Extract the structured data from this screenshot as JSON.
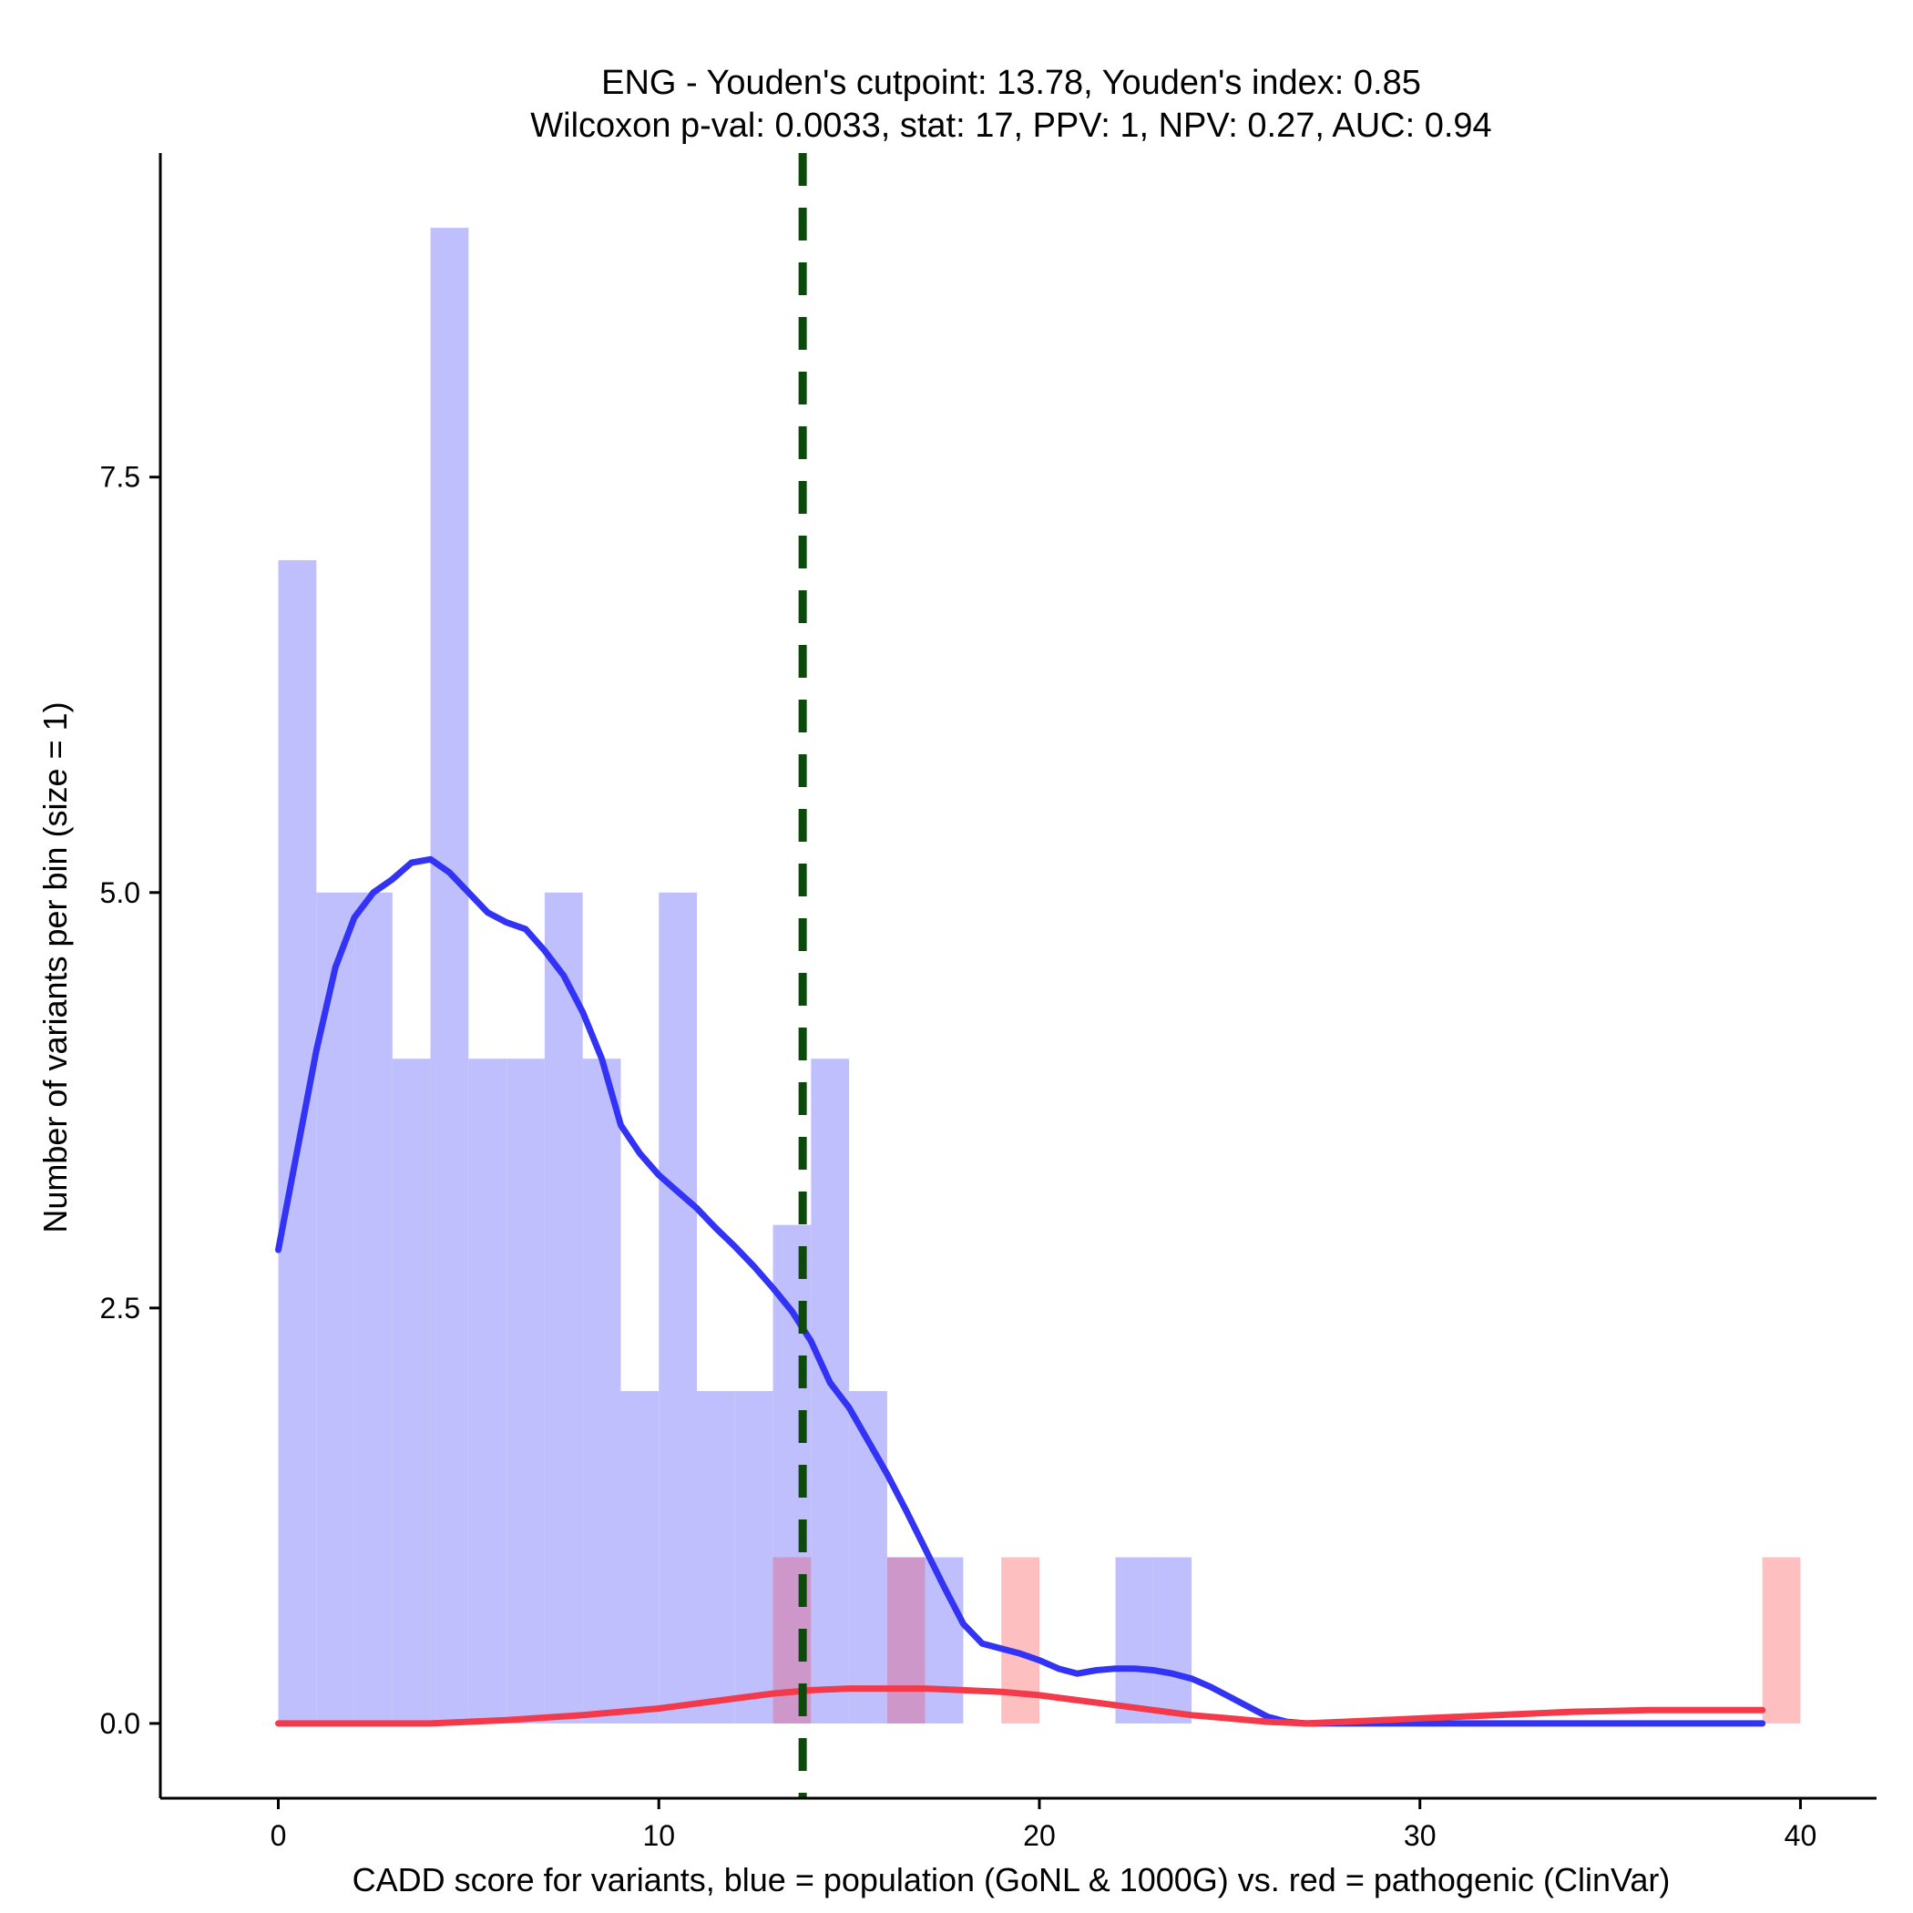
{
  "chart_data": {
    "type": "histogram",
    "title_line1": "ENG - Youden's cutpoint: 13.78, Youden's index: 0.85",
    "title_line2": "Wilcoxon p-val: 0.0033, stat: 17, PPV: 1, NPV: 0.27, AUC: 0.94",
    "xlabel": "CADD score for variants, blue = population (GoNL & 1000G) vs. red = pathogenic (ClinVar)",
    "ylabel": "Number of variants per bin (size = 1)",
    "xlim": [
      -3.1,
      42.0
    ],
    "ylim": [
      -0.45,
      9.45
    ],
    "x_ticks": [
      0,
      10,
      20,
      30,
      40
    ],
    "x_tick_labels": [
      "0",
      "10",
      "20",
      "30",
      "40"
    ],
    "y_ticks": [
      0,
      2.5,
      5,
      7.5
    ],
    "y_tick_labels": [
      "0.0",
      "2.5",
      "5.0",
      "7.5"
    ],
    "cutpoint": 13.78,
    "colors": {
      "population_bar": "#bfbffd",
      "pathogenic_bar": "#fdbfbf",
      "overlap_bar": "#cd97c9",
      "population_line": "#3333f5",
      "pathogenic_line": "#f23a4a",
      "cutpoint_line": "#0b4a0b"
    },
    "series": [
      {
        "name": "population (GoNL & 1000G)",
        "bins": [
          {
            "x0": 0,
            "x1": 1,
            "count": 7
          },
          {
            "x0": 1,
            "x1": 2,
            "count": 5
          },
          {
            "x0": 2,
            "x1": 3,
            "count": 5
          },
          {
            "x0": 3,
            "x1": 4,
            "count": 4
          },
          {
            "x0": 4,
            "x1": 5,
            "count": 9
          },
          {
            "x0": 5,
            "x1": 6,
            "count": 4
          },
          {
            "x0": 6,
            "x1": 7,
            "count": 4
          },
          {
            "x0": 7,
            "x1": 8,
            "count": 5
          },
          {
            "x0": 8,
            "x1": 9,
            "count": 4
          },
          {
            "x0": 9,
            "x1": 10,
            "count": 2
          },
          {
            "x0": 10,
            "x1": 11,
            "count": 5
          },
          {
            "x0": 11,
            "x1": 12,
            "count": 2
          },
          {
            "x0": 12,
            "x1": 13,
            "count": 2
          },
          {
            "x0": 13,
            "x1": 14,
            "count": 3
          },
          {
            "x0": 14,
            "x1": 15,
            "count": 4
          },
          {
            "x0": 15,
            "x1": 16,
            "count": 2
          },
          {
            "x0": 16,
            "x1": 17,
            "count": 1
          },
          {
            "x0": 17,
            "x1": 18,
            "count": 1
          },
          {
            "x0": 22,
            "x1": 23,
            "count": 1
          },
          {
            "x0": 23,
            "x1": 24,
            "count": 1
          }
        ],
        "density": [
          [
            0,
            2.85
          ],
          [
            0.5,
            3.45
          ],
          [
            1,
            4.05
          ],
          [
            1.5,
            4.55
          ],
          [
            2,
            4.85
          ],
          [
            2.5,
            5.0
          ],
          [
            3,
            5.08
          ],
          [
            3.5,
            5.18
          ],
          [
            4,
            5.2
          ],
          [
            4.5,
            5.12
          ],
          [
            5,
            5.0
          ],
          [
            5.5,
            4.88
          ],
          [
            6,
            4.82
          ],
          [
            6.5,
            4.78
          ],
          [
            7,
            4.65
          ],
          [
            7.5,
            4.5
          ],
          [
            8,
            4.28
          ],
          [
            8.5,
            4.0
          ],
          [
            9,
            3.6
          ],
          [
            9.5,
            3.43
          ],
          [
            10,
            3.3
          ],
          [
            10.5,
            3.2
          ],
          [
            11,
            3.1
          ],
          [
            11.5,
            2.98
          ],
          [
            12,
            2.87
          ],
          [
            12.5,
            2.75
          ],
          [
            13,
            2.62
          ],
          [
            13.5,
            2.48
          ],
          [
            14,
            2.3
          ],
          [
            14.5,
            2.05
          ],
          [
            15,
            1.9
          ],
          [
            15.5,
            1.7
          ],
          [
            16,
            1.5
          ],
          [
            16.5,
            1.28
          ],
          [
            17,
            1.05
          ],
          [
            17.5,
            0.82
          ],
          [
            18,
            0.6
          ],
          [
            18.5,
            0.48
          ],
          [
            19,
            0.45
          ],
          [
            19.5,
            0.42
          ],
          [
            20,
            0.38
          ],
          [
            20.5,
            0.33
          ],
          [
            21,
            0.3
          ],
          [
            21.5,
            0.32
          ],
          [
            22,
            0.33
          ],
          [
            22.5,
            0.33
          ],
          [
            23,
            0.32
          ],
          [
            23.5,
            0.3
          ],
          [
            24,
            0.27
          ],
          [
            24.5,
            0.22
          ],
          [
            25,
            0.16
          ],
          [
            25.5,
            0.1
          ],
          [
            26,
            0.04
          ],
          [
            26.5,
            0.01
          ],
          [
            27,
            0.0
          ],
          [
            28,
            0.0
          ],
          [
            30,
            0.0
          ],
          [
            33,
            0.0
          ],
          [
            36,
            0.0
          ],
          [
            39,
            0.0
          ]
        ]
      },
      {
        "name": "pathogenic (ClinVar)",
        "bins": [
          {
            "x0": 13,
            "x1": 14,
            "count": 1
          },
          {
            "x0": 16,
            "x1": 17,
            "count": 1
          },
          {
            "x0": 19,
            "x1": 20,
            "count": 1
          },
          {
            "x0": 39,
            "x1": 40,
            "count": 1
          }
        ],
        "density": [
          [
            0,
            0.0
          ],
          [
            2,
            0.0
          ],
          [
            4,
            0.0
          ],
          [
            6,
            0.02
          ],
          [
            8,
            0.05
          ],
          [
            10,
            0.09
          ],
          [
            11,
            0.12
          ],
          [
            12,
            0.15
          ],
          [
            13,
            0.18
          ],
          [
            14,
            0.2
          ],
          [
            15,
            0.21
          ],
          [
            16,
            0.21
          ],
          [
            17,
            0.21
          ],
          [
            18,
            0.2
          ],
          [
            19,
            0.19
          ],
          [
            20,
            0.17
          ],
          [
            21,
            0.14
          ],
          [
            22,
            0.11
          ],
          [
            23,
            0.08
          ],
          [
            24,
            0.05
          ],
          [
            25,
            0.03
          ],
          [
            26,
            0.01
          ],
          [
            27,
            0.0
          ],
          [
            28,
            0.01
          ],
          [
            29,
            0.02
          ],
          [
            30,
            0.03
          ],
          [
            32,
            0.05
          ],
          [
            34,
            0.07
          ],
          [
            36,
            0.08
          ],
          [
            38,
            0.08
          ],
          [
            39,
            0.08
          ]
        ]
      }
    ]
  }
}
